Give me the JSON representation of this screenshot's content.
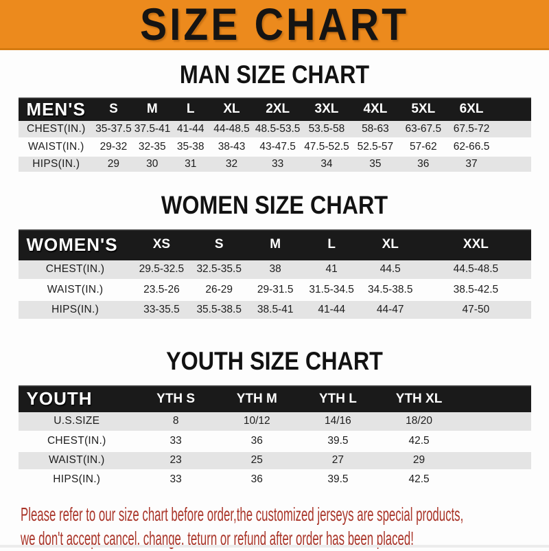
{
  "banner": {
    "title": "SIZE CHART"
  },
  "man_section": {
    "title": "MAN SIZE CHART"
  },
  "women_section": {
    "title": "WOMEN SIZE CHART"
  },
  "youth_section": {
    "title": "YOUTH SIZE CHART"
  },
  "men_table": {
    "label": "MEN'S",
    "sizes": [
      "S",
      "M",
      "L",
      "XL",
      "2XL",
      "3XL",
      "4XL",
      "5XL",
      "6XL"
    ],
    "rows": [
      {
        "label": "CHEST(IN.)",
        "values": [
          "35-37.5",
          "37.5-41",
          "41-44",
          "44-48.5",
          "48.5-53.5",
          "53.5-58",
          "58-63",
          "63-67.5",
          "67.5-72"
        ]
      },
      {
        "label": "WAIST(IN.)",
        "values": [
          "29-32",
          "32-35",
          "35-38",
          "38-43",
          "43-47.5",
          "47.5-52.5",
          "52.5-57",
          "57-62",
          "62-66.5"
        ]
      },
      {
        "label": "HIPS(IN.)",
        "values": [
          "29",
          "30",
          "31",
          "32",
          "33",
          "34",
          "35",
          "36",
          "37"
        ]
      }
    ]
  },
  "women_table": {
    "label": "WOMEN'S",
    "sizes": [
      "XS",
      "S",
      "M",
      "L",
      "XL",
      "XXL"
    ],
    "rows": [
      {
        "label": "CHEST(IN.)",
        "values": [
          "29.5-32.5",
          "32.5-35.5",
          "38",
          "41",
          "44.5",
          "44.5-48.5"
        ]
      },
      {
        "label": "WAIST(IN.)",
        "values": [
          "23.5-26",
          "26-29",
          "29-31.5",
          "31.5-34.5",
          "34.5-38.5",
          "38.5-42.5"
        ]
      },
      {
        "label": "HIPS(IN.)",
        "values": [
          "33-35.5",
          "35.5-38.5",
          "38.5-41",
          "41-44",
          "44-47",
          "47-50"
        ]
      }
    ]
  },
  "youth_table": {
    "label": "YOUTH",
    "sizes": [
      "YTH S",
      "YTH M",
      "YTH L",
      "YTH XL"
    ],
    "rows": [
      {
        "label": "U.S.SIZE",
        "values": [
          "8",
          "10/12",
          "14/16",
          "18/20"
        ]
      },
      {
        "label": "CHEST(IN.)",
        "values": [
          "33",
          "36",
          "39.5",
          "42.5"
        ]
      },
      {
        "label": "WAIST(IN.)",
        "values": [
          "23",
          "25",
          "27",
          "29"
        ]
      },
      {
        "label": "HIPS(IN.)",
        "values": [
          "33",
          "36",
          "39.5",
          "42.5"
        ]
      }
    ]
  },
  "disclaimer": {
    "line1": "Please refer to our size chart before order,the customized jerseys are special products,",
    "line2": "we don't accept cancel, change, teturn or refund after order has been placed!"
  },
  "colors": {
    "banner_orange": "#EC8A1D",
    "header_black": "#1A1A1A",
    "row_gray": "#E4E4E4",
    "disclaimer_red": "#A93428"
  }
}
